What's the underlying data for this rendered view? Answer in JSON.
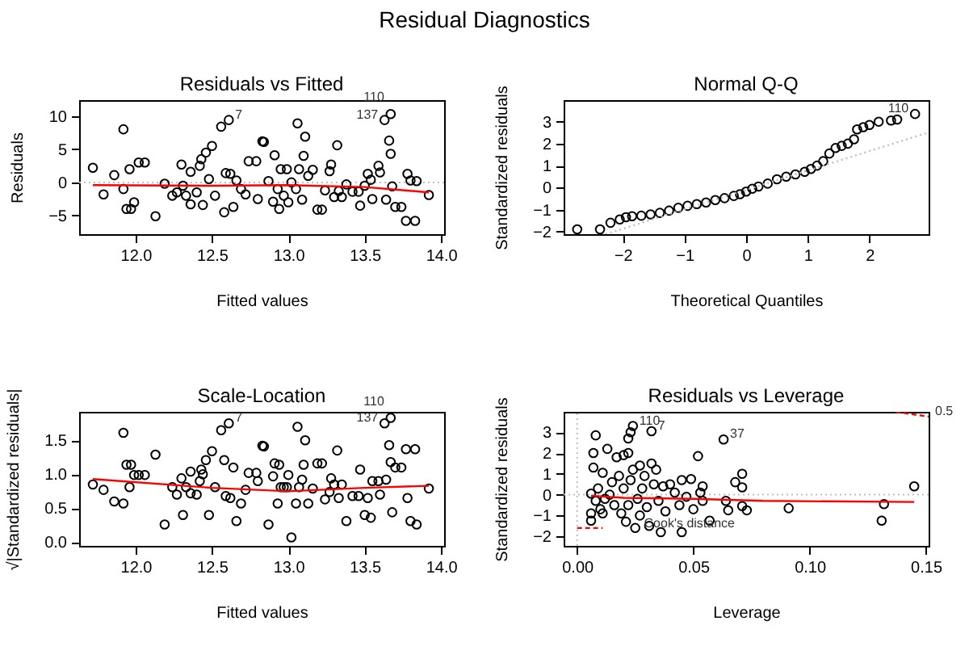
{
  "chart_data": [
    {
      "type": "other",
      "title": "Residual Diagnostics"
    },
    {
      "type": "scatter",
      "title": "Residuals vs Fitted",
      "xlabel": "Fitted values",
      "ylabel": "Residuals",
      "xlim": [
        11.63,
        14.02
      ],
      "xticks": [
        {
          "value": 12,
          "label": "12.0"
        },
        {
          "value": 12.5,
          "label": "12.5"
        },
        {
          "value": 13,
          "label": "13.0"
        },
        {
          "value": 13.5,
          "label": "13.5"
        },
        {
          "value": 14,
          "label": "14.0"
        }
      ],
      "ylim": [
        -7.8,
        12.4
      ],
      "yticks": [
        {
          "value": -5,
          "label": "−5"
        },
        0,
        5,
        10
      ],
      "series": [
        {
          "type": "scatter",
          "color": "#000000",
          "marker": "circle",
          "x": [
            11.72,
            11.79,
            11.86,
            11.92,
            11.92,
            11.94,
            11.96,
            11.97,
            11.99,
            12.02,
            12.06,
            12.13,
            12.19,
            12.24,
            12.27,
            12.3,
            12.31,
            12.33,
            12.36,
            12.36,
            12.4,
            12.42,
            12.43,
            12.44,
            12.46,
            12.48,
            12.5,
            12.52,
            12.56,
            12.58,
            12.59,
            12.61,
            12.62,
            12.64,
            12.66,
            12.69,
            12.72,
            12.74,
            12.79,
            12.8,
            12.83,
            12.84,
            12.87,
            12.9,
            12.91,
            12.93,
            12.94,
            12.95,
            12.97,
            12.99,
            13.0,
            13.02,
            13.05,
            13.06,
            13.07,
            13.09,
            13.1,
            13.11,
            13.13,
            13.16,
            13.19,
            13.22,
            13.24,
            13.27,
            13.28,
            13.3,
            13.32,
            13.33,
            13.35,
            13.38,
            13.42,
            13.46,
            13.47,
            13.5,
            13.52,
            13.54,
            13.55,
            13.59,
            13.6,
            13.63,
            13.64,
            13.66,
            13.67,
            13.67,
            13.68,
            13.7,
            13.74,
            13.77,
            13.78,
            13.8,
            13.83,
            13.84,
            13.92
          ],
          "values": [
            2.2,
            -1.8,
            1.1,
            8.0,
            -1.0,
            -4.0,
            2.0,
            -4.0,
            -3.0,
            3.0,
            3.0,
            -5.1,
            -0.2,
            -2.0,
            -1.5,
            2.7,
            -0.5,
            -2.0,
            1.6,
            -3.3,
            -1.5,
            2.5,
            3.5,
            -3.4,
            4.5,
            0.5,
            5.5,
            -2.0,
            8.4,
            -4.5,
            1.4,
            9.4,
            1.3,
            -3.7,
            0.3,
            -1.0,
            -1.8,
            3.2,
            3.2,
            -2.5,
            6.2,
            6.1,
            0.2,
            -2.9,
            4.1,
            -1.0,
            -4.0,
            2.0,
            -2.0,
            2.0,
            -3.0,
            0.0,
            -1.0,
            8.9,
            2.0,
            -2.6,
            4.0,
            6.9,
            1.0,
            1.9,
            -4.1,
            -4.1,
            -1.2,
            1.7,
            2.7,
            -2.2,
            5.6,
            -1.3,
            -2.2,
            -0.3,
            -1.4,
            -1.4,
            -3.5,
            -0.5,
            1.3,
            0.4,
            -2.5,
            2.5,
            1.5,
            9.4,
            -2.6,
            6.3,
            10.3,
            4.3,
            -0.6,
            -3.7,
            -3.7,
            -5.8,
            1.3,
            0.3,
            -5.8,
            0.2,
            -1.9
          ]
        },
        {
          "type": "line",
          "color": "#ff0000",
          "x": [
            11.72,
            12.5,
            13.0,
            13.5,
            13.92
          ],
          "values": [
            -0.4,
            -0.5,
            -0.4,
            -0.7,
            -1.5
          ]
        }
      ],
      "ref_lines": [
        {
          "axis": "y",
          "value": 0,
          "color": "#bebebe",
          "line_style": "dotted"
        }
      ],
      "annotations": [
        {
          "text": "7",
          "x": 12.61,
          "y": 9.4
        },
        {
          "text": "137",
          "x": 13.63,
          "y": 9.4
        },
        {
          "text": "110",
          "x": 13.67,
          "y": 10.3
        }
      ]
    },
    {
      "type": "scatter",
      "title": "Normal Q-Q",
      "xlabel": "Theoretical Quantiles",
      "ylabel": "Standardized residuals",
      "xlim": [
        -2.96,
        2.96
      ],
      "xticks": [
        {
          "value": -2,
          "label": "−2"
        },
        {
          "value": -1,
          "label": "−1"
        },
        0,
        1,
        2
      ],
      "ylim": [
        -2.12,
        3.98
      ],
      "yticks": [
        {
          "value": -2,
          "label": "−2"
        },
        {
          "value": -1,
          "label": "−1"
        },
        0,
        1,
        2,
        3
      ],
      "series": [
        {
          "type": "scatter",
          "color": "#000000",
          "marker": "circle",
          "x": [
            -2.74,
            -2.37,
            -2.2,
            -2.05,
            -1.95,
            -1.85,
            -1.7,
            -1.55,
            -1.4,
            -1.25,
            -1.1,
            -0.95,
            -0.8,
            -0.65,
            -0.5,
            -0.35,
            -0.2,
            -0.1,
            0.0,
            0.1,
            0.2,
            0.35,
            0.5,
            0.65,
            0.8,
            0.95,
            1.05,
            1.15,
            1.25,
            1.35,
            1.45,
            1.55,
            1.65,
            1.75,
            1.8,
            1.9,
            2.0,
            2.15,
            2.35,
            2.45,
            2.74
          ],
          "values": [
            -1.9,
            -1.9,
            -1.6,
            -1.45,
            -1.35,
            -1.3,
            -1.28,
            -1.22,
            -1.15,
            -1.05,
            -0.92,
            -0.83,
            -0.75,
            -0.68,
            -0.57,
            -0.48,
            -0.38,
            -0.3,
            -0.18,
            -0.05,
            0.05,
            0.18,
            0.38,
            0.5,
            0.6,
            0.72,
            0.85,
            1.0,
            1.2,
            1.55,
            1.8,
            1.9,
            2.0,
            2.2,
            2.65,
            2.75,
            2.85,
            3.0,
            3.05,
            3.1,
            3.35
          ]
        },
        {
          "type": "line",
          "color": "#bebebe",
          "line_style": "dotted",
          "x": [
            -2.28,
            2.96
          ],
          "values": [
            -2.12,
            2.51
          ]
        }
      ],
      "annotations": [
        {
          "text": "110",
          "x": 2.74,
          "y": 3.35
        }
      ]
    },
    {
      "type": "scatter",
      "title": "Scale-Location",
      "xlabel": "Fitted values",
      "ylabel": "√|Standardized residuals|",
      "xlim": [
        11.63,
        14.02
      ],
      "xticks": [
        {
          "value": 12,
          "label": "12.0"
        },
        {
          "value": 12.5,
          "label": "12.5"
        },
        {
          "value": 13,
          "label": "13.0"
        },
        {
          "value": 13.5,
          "label": "13.5"
        },
        {
          "value": 14,
          "label": "14.0"
        }
      ],
      "ylim": [
        -0.055,
        1.92
      ],
      "yticks": [
        {
          "value": 0,
          "label": "0.0"
        },
        {
          "value": 0.5,
          "label": "0.5"
        },
        {
          "value": 1,
          "label": "1.0"
        },
        {
          "value": 1.5,
          "label": "1.5"
        }
      ],
      "series": [
        {
          "type": "scatter",
          "color": "#000000",
          "x": [
            11.72,
            11.79,
            11.86,
            11.92,
            11.92,
            11.94,
            11.96,
            11.97,
            11.99,
            12.02,
            12.06,
            12.13,
            12.19,
            12.24,
            12.27,
            12.3,
            12.31,
            12.33,
            12.36,
            12.36,
            12.4,
            12.42,
            12.43,
            12.44,
            12.46,
            12.48,
            12.5,
            12.52,
            12.56,
            12.58,
            12.59,
            12.61,
            12.62,
            12.64,
            12.66,
            12.69,
            12.72,
            12.74,
            12.79,
            12.8,
            12.83,
            12.84,
            12.87,
            12.9,
            12.91,
            12.93,
            12.94,
            12.95,
            12.97,
            12.99,
            13.0,
            13.02,
            13.05,
            13.06,
            13.07,
            13.09,
            13.1,
            13.11,
            13.13,
            13.16,
            13.19,
            13.22,
            13.24,
            13.27,
            13.28,
            13.3,
            13.32,
            13.33,
            13.35,
            13.38,
            13.42,
            13.46,
            13.47,
            13.5,
            13.52,
            13.54,
            13.55,
            13.59,
            13.6,
            13.63,
            13.64,
            13.66,
            13.67,
            13.67,
            13.68,
            13.7,
            13.74,
            13.77,
            13.78,
            13.8,
            13.83,
            13.84,
            13.92
          ],
          "marker": "circle",
          "values": [
            0.85,
            0.77,
            0.6,
            1.61,
            0.57,
            1.14,
            0.81,
            1.14,
            0.99,
            0.99,
            0.99,
            1.29,
            0.26,
            0.81,
            0.7,
            0.94,
            0.4,
            0.81,
            0.72,
            1.04,
            0.7,
            0.9,
            1.07,
            1.0,
            1.21,
            0.4,
            1.34,
            0.81,
            1.65,
            1.21,
            0.68,
            1.75,
            0.65,
            1.1,
            0.31,
            0.57,
            0.77,
            1.02,
            1.02,
            0.9,
            1.42,
            1.41,
            0.26,
            0.97,
            1.16,
            0.57,
            1.14,
            0.81,
            0.81,
            0.81,
            0.99,
            0.07,
            0.57,
            1.7,
            0.81,
            0.92,
            1.14,
            1.5,
            0.57,
            0.79,
            1.16,
            1.16,
            0.63,
            0.74,
            0.94,
            0.85,
            1.35,
            0.65,
            0.85,
            0.31,
            0.68,
            0.68,
            1.07,
            0.4,
            0.65,
            0.36,
            0.9,
            0.9,
            0.7,
            1.75,
            0.92,
            1.43,
            1.83,
            1.18,
            0.44,
            1.1,
            1.1,
            1.37,
            0.65,
            0.31,
            1.37,
            0.26,
            0.79
          ]
        },
        {
          "type": "line",
          "color": "#ff0000",
          "x": [
            11.72,
            12.5,
            13.0,
            13.5,
            13.92
          ],
          "values": [
            0.93,
            0.8,
            0.75,
            0.8,
            0.83
          ]
        }
      ],
      "annotations": [
        {
          "text": "7",
          "x": 12.61,
          "y": 1.75
        },
        {
          "text": "137",
          "x": 13.63,
          "y": 1.75
        },
        {
          "text": "110",
          "x": 13.67,
          "y": 1.83
        }
      ]
    },
    {
      "type": "scatter",
      "title": "Residuals vs Leverage",
      "xlabel": "Leverage",
      "ylabel": "Standardized residuals",
      "xlim": [
        -0.0058,
        0.1512
      ],
      "xticks": [
        {
          "value": 0,
          "label": "0.00"
        },
        {
          "value": 0.05,
          "label": "0.05"
        },
        {
          "value": 0.1,
          "label": "0.10"
        },
        {
          "value": 0.15,
          "label": "0.15"
        }
      ],
      "ylim": [
        -2.46,
        3.98
      ],
      "yticks": [
        {
          "value": -2,
          "label": "−2"
        },
        {
          "value": -1,
          "label": "−1"
        },
        0,
        1,
        2,
        3
      ],
      "series": [
        {
          "type": "scatter",
          "color": "#000000",
          "marker": "circle",
          "x": [
            0.006,
            0.006,
            0.006,
            0.007,
            0.007,
            0.008,
            0.008,
            0.009,
            0.01,
            0.011,
            0.011,
            0.012,
            0.013,
            0.014,
            0.015,
            0.016,
            0.017,
            0.018,
            0.019,
            0.02,
            0.02,
            0.021,
            0.022,
            0.022,
            0.022,
            0.023,
            0.023,
            0.024,
            0.024,
            0.025,
            0.026,
            0.027,
            0.027,
            0.028,
            0.029,
            0.03,
            0.031,
            0.032,
            0.032,
            0.033,
            0.034,
            0.035,
            0.036,
            0.037,
            0.038,
            0.04,
            0.042,
            0.044,
            0.045,
            0.045,
            0.047,
            0.049,
            0.05,
            0.052,
            0.053,
            0.054,
            0.054,
            0.057,
            0.063,
            0.064,
            0.065,
            0.068,
            0.071,
            0.071,
            0.071,
            0.073,
            0.091,
            0.131,
            0.132,
            0.145
          ],
          "values": [
            0.05,
            -0.9,
            -1.25,
            1.3,
            2.0,
            2.85,
            -0.3,
            0.3,
            -0.7,
            1.05,
            -0.9,
            -0.2,
            2.2,
            0.0,
            0.6,
            -0.5,
            1.8,
            0.9,
            -0.9,
            1.9,
            0.3,
            -1.3,
            2.7,
            2.0,
            -0.5,
            0.7,
            3.0,
            3.3,
            1.2,
            -1.6,
            -0.2,
            1.4,
            -1.0,
            0.3,
            0.9,
            -0.6,
            -1.5,
            3.05,
            1.5,
            0.5,
            1.2,
            -0.3,
            -1.8,
            0.4,
            -0.8,
            0.5,
            0.1,
            -0.5,
            0.7,
            -1.8,
            -0.1,
            0.75,
            -0.7,
            1.85,
            0.1,
            0.4,
            -0.3,
            -1.25,
            2.65,
            -0.3,
            -0.75,
            0.6,
            0.35,
            1.0,
            -0.55,
            -0.75,
            -0.65,
            -1.25,
            -0.45,
            0.4
          ]
        },
        {
          "type": "line",
          "color": "#ff0000",
          "x": [
            0.006,
            0.02,
            0.05,
            0.08,
            0.145
          ],
          "values": [
            -0.05,
            -0.15,
            -0.2,
            -0.3,
            -0.35
          ]
        },
        {
          "type": "line",
          "color": "#ff0000",
          "line_style": "dashed",
          "x": [
            0.0,
            0.011
          ],
          "values": [
            -1.6,
            -1.6
          ]
        },
        {
          "type": "line",
          "color": "#ff0000",
          "line_style": "dashed",
          "x": [
            0.137,
            0.1512
          ],
          "values": [
            3.98,
            3.75
          ]
        }
      ],
      "ref_lines": [
        {
          "axis": "y",
          "value": 0,
          "color": "#bebebe",
          "line_style": "dotted"
        },
        {
          "axis": "x",
          "value": 0,
          "color": "#bebebe",
          "line_style": "dotted"
        }
      ],
      "annotations": [
        {
          "text": "110",
          "x": 0.024,
          "y": 3.3
        },
        {
          "text": "7",
          "x": 0.032,
          "y": 3.05
        },
        {
          "text": "37",
          "x": 0.063,
          "y": 2.65
        },
        {
          "text": "Cook's distance",
          "x": 0.026,
          "y": -1.65
        },
        {
          "text": "0.5",
          "x": 0.1512,
          "y": 3.75
        }
      ]
    }
  ]
}
